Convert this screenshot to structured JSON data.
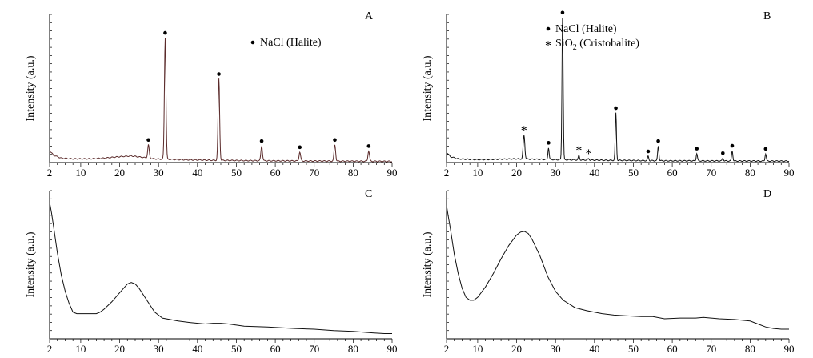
{
  "chart_data": [
    {
      "panel": "A",
      "type": "line",
      "ylabel": "Intensity (a.u.)",
      "xlim": [
        2,
        90
      ],
      "ylim": [
        0,
        100
      ],
      "xticks": [
        2,
        10,
        20,
        30,
        40,
        50,
        60,
        70,
        80,
        90
      ],
      "legend": [
        {
          "marker": "•",
          "label": "NaCl (Halite)"
        }
      ],
      "baseline": [
        [
          2,
          8
        ],
        [
          3,
          5
        ],
        [
          5,
          3
        ],
        [
          8,
          2.5
        ],
        [
          12,
          2.5
        ],
        [
          16,
          3
        ],
        [
          20,
          4
        ],
        [
          23,
          4.5
        ],
        [
          26,
          3.5
        ],
        [
          29,
          2.5
        ],
        [
          35,
          2
        ],
        [
          45,
          1.5
        ],
        [
          60,
          1.2
        ],
        [
          75,
          1.0
        ],
        [
          90,
          0.8
        ]
      ],
      "peaks": [
        {
          "x": 27.4,
          "y": 9,
          "w": 0.28,
          "marker": "•"
        },
        {
          "x": 31.7,
          "y": 82,
          "w": 0.28,
          "marker": "•"
        },
        {
          "x": 45.5,
          "y": 55,
          "w": 0.28,
          "marker": "•"
        },
        {
          "x": 56.5,
          "y": 10,
          "w": 0.28,
          "marker": "•"
        },
        {
          "x": 66.3,
          "y": 6,
          "w": 0.28,
          "marker": "•"
        },
        {
          "x": 75.3,
          "y": 11,
          "w": 0.28,
          "marker": "•"
        },
        {
          "x": 84.0,
          "y": 7,
          "w": 0.28,
          "marker": "•"
        }
      ]
    },
    {
      "panel": "B",
      "type": "line",
      "ylabel": "Intensity (a.u.)",
      "xlim": [
        2,
        90
      ],
      "ylim": [
        0,
        100
      ],
      "xticks": [
        2,
        10,
        20,
        30,
        40,
        50,
        60,
        70,
        80,
        90
      ],
      "legend": [
        {
          "marker": "•",
          "label": "NaCl (Halite)"
        },
        {
          "marker": "*",
          "label_main": "SiO",
          "label_sub": "2",
          "label_rest": " (Cristobalite)"
        }
      ],
      "baseline": [
        [
          2,
          7
        ],
        [
          3,
          4
        ],
        [
          5,
          2.5
        ],
        [
          10,
          2
        ],
        [
          20,
          2.5
        ],
        [
          30,
          2
        ],
        [
          45,
          1.5
        ],
        [
          60,
          1.2
        ],
        [
          90,
          1
        ]
      ],
      "peaks": [
        {
          "x": 21.9,
          "y": 16,
          "w": 0.3,
          "marker": "*"
        },
        {
          "x": 28.2,
          "y": 8,
          "w": 0.22,
          "marker": "•"
        },
        {
          "x": 31.8,
          "y": 96,
          "w": 0.22,
          "marker": "•"
        },
        {
          "x": 36.0,
          "y": 3,
          "w": 0.22,
          "marker": "*"
        },
        {
          "x": 38.5,
          "y": 1,
          "w": 0.22,
          "marker": "*"
        },
        {
          "x": 45.5,
          "y": 32,
          "w": 0.22,
          "marker": "•"
        },
        {
          "x": 53.8,
          "y": 3,
          "w": 0.22,
          "marker": "•"
        },
        {
          "x": 56.4,
          "y": 10,
          "w": 0.22,
          "marker": "•"
        },
        {
          "x": 66.3,
          "y": 5,
          "w": 0.22,
          "marker": "•"
        },
        {
          "x": 73.0,
          "y": 2,
          "w": 0.22,
          "marker": "•"
        },
        {
          "x": 75.4,
          "y": 7,
          "w": 0.22,
          "marker": "•"
        },
        {
          "x": 84.0,
          "y": 5,
          "w": 0.22,
          "marker": "•"
        }
      ]
    },
    {
      "panel": "C",
      "type": "line",
      "ylabel": "Intensity (a.u.)",
      "xlim": [
        2,
        90
      ],
      "ylim": [
        0,
        100
      ],
      "xticks": [
        2,
        10,
        20,
        30,
        40,
        50,
        60,
        70,
        80,
        90
      ],
      "legend": [],
      "points": [
        [
          2,
          92
        ],
        [
          2.5,
          85
        ],
        [
          3,
          76
        ],
        [
          4,
          58
        ],
        [
          5,
          43
        ],
        [
          6,
          32
        ],
        [
          7,
          24
        ],
        [
          8,
          18
        ],
        [
          9,
          17
        ],
        [
          10,
          17
        ],
        [
          12,
          17
        ],
        [
          14,
          17
        ],
        [
          15,
          18
        ],
        [
          16,
          20
        ],
        [
          18,
          25
        ],
        [
          20,
          31
        ],
        [
          22,
          37
        ],
        [
          23,
          38
        ],
        [
          24,
          37
        ],
        [
          25,
          34
        ],
        [
          27,
          26
        ],
        [
          29,
          18
        ],
        [
          31,
          14
        ],
        [
          35,
          12
        ],
        [
          38,
          11
        ],
        [
          42,
          10
        ],
        [
          44,
          10.5
        ],
        [
          46,
          10.5
        ],
        [
          48,
          10
        ],
        [
          52,
          8.5
        ],
        [
          58,
          8
        ],
        [
          65,
          7
        ],
        [
          70,
          6.5
        ],
        [
          75,
          5.5
        ],
        [
          80,
          5
        ],
        [
          85,
          4
        ],
        [
          88,
          3.5
        ],
        [
          90,
          3.5
        ]
      ],
      "peaks": []
    },
    {
      "panel": "D",
      "type": "line",
      "ylabel": "Intensity (a.u.)",
      "xlim": [
        2,
        90
      ],
      "ylim": [
        0,
        100
      ],
      "xticks": [
        2,
        10,
        20,
        30,
        40,
        50,
        60,
        70,
        80,
        90
      ],
      "legend": [],
      "points": [
        [
          2,
          90
        ],
        [
          2.5,
          82
        ],
        [
          3,
          74
        ],
        [
          4,
          57
        ],
        [
          5,
          44
        ],
        [
          6,
          34
        ],
        [
          7,
          28
        ],
        [
          8,
          26
        ],
        [
          9,
          26
        ],
        [
          10,
          28
        ],
        [
          12,
          35
        ],
        [
          14,
          44
        ],
        [
          16,
          54
        ],
        [
          18,
          63
        ],
        [
          20,
          70
        ],
        [
          21,
          72
        ],
        [
          22,
          72.5
        ],
        [
          23,
          71
        ],
        [
          24,
          67
        ],
        [
          26,
          56
        ],
        [
          28,
          42
        ],
        [
          30,
          32
        ],
        [
          32,
          26
        ],
        [
          35,
          21
        ],
        [
          38,
          19
        ],
        [
          42,
          17
        ],
        [
          45,
          16
        ],
        [
          48,
          15.5
        ],
        [
          52,
          15
        ],
        [
          55,
          15
        ],
        [
          58,
          13.5
        ],
        [
          62,
          14
        ],
        [
          66,
          14
        ],
        [
          68,
          14.5
        ],
        [
          72,
          13.5
        ],
        [
          76,
          13
        ],
        [
          80,
          12
        ],
        [
          82,
          10
        ],
        [
          84,
          8
        ],
        [
          86,
          7
        ],
        [
          88,
          6.5
        ],
        [
          90,
          6.5
        ]
      ],
      "peaks": []
    }
  ]
}
